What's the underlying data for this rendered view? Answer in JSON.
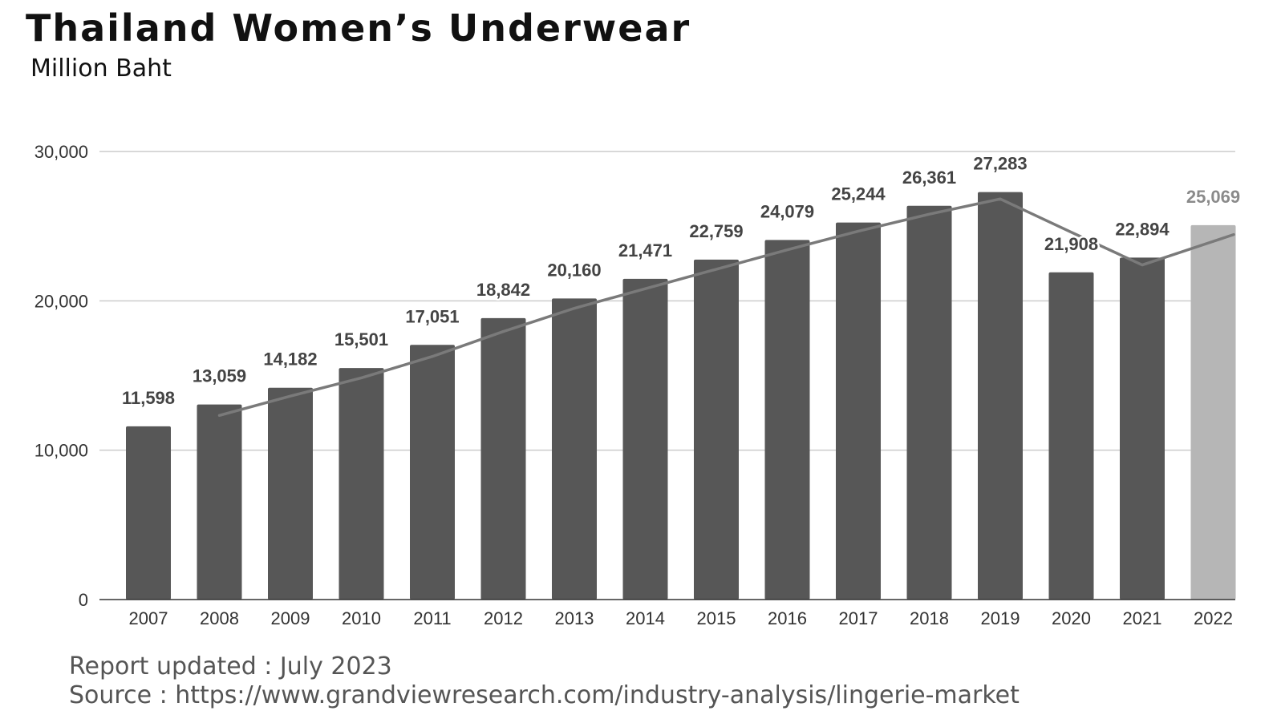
{
  "header": {
    "title": "Thailand Women’s Underwear",
    "subtitle": "Million Baht"
  },
  "footer": {
    "updated": "Report updated : July 2023",
    "source": "Source : https://www.grandviewresearch.com/industry-analysis/lingerie-market"
  },
  "colors": {
    "bar": "#575757",
    "bar_highlight": "#b6b6b6",
    "label": "#444444",
    "label_highlight": "#8a8a8a",
    "trendline": "#7a7a7a",
    "grid": "#cccccc",
    "axis": "#333333"
  },
  "chart_data": {
    "type": "bar",
    "title": "Thailand Women’s Underwear",
    "ylabel": "Million Baht",
    "xlabel": "",
    "categories": [
      "2007",
      "2008",
      "2009",
      "2010",
      "2011",
      "2012",
      "2013",
      "2014",
      "2015",
      "2016",
      "2017",
      "2018",
      "2019",
      "2020",
      "2021",
      "2022"
    ],
    "values": [
      11598,
      13059,
      14182,
      15501,
      17051,
      18842,
      20160,
      21471,
      22759,
      24079,
      25244,
      26361,
      27283,
      21908,
      22894,
      25069
    ],
    "value_labels": [
      "11,598",
      "13,059",
      "14,182",
      "15,501",
      "17,051",
      "18,842",
      "20,160",
      "21,471",
      "22,759",
      "24,079",
      "25,244",
      "26,361",
      "27,283",
      "21,908",
      "22,894",
      "25,069"
    ],
    "highlighted_category": "2022",
    "ylim": [
      0,
      30000
    ],
    "yticks": [
      0,
      10000,
      20000,
      30000
    ],
    "ytick_labels": [
      "0",
      "10,000",
      "20,000",
      "30,000"
    ],
    "grid": true,
    "trendline": {
      "type": "moving-average",
      "x": [
        "2008",
        "2009",
        "2010",
        "2011",
        "2012",
        "2013",
        "2014",
        "2015",
        "2016",
        "2017",
        "2018",
        "2019",
        "2020",
        "2021",
        "2022"
      ],
      "values": [
        12329,
        13621,
        14842,
        16276,
        17947,
        19501,
        20816,
        22115,
        23419,
        24662,
        25803,
        26822,
        24596,
        22401,
        23982
      ]
    }
  }
}
